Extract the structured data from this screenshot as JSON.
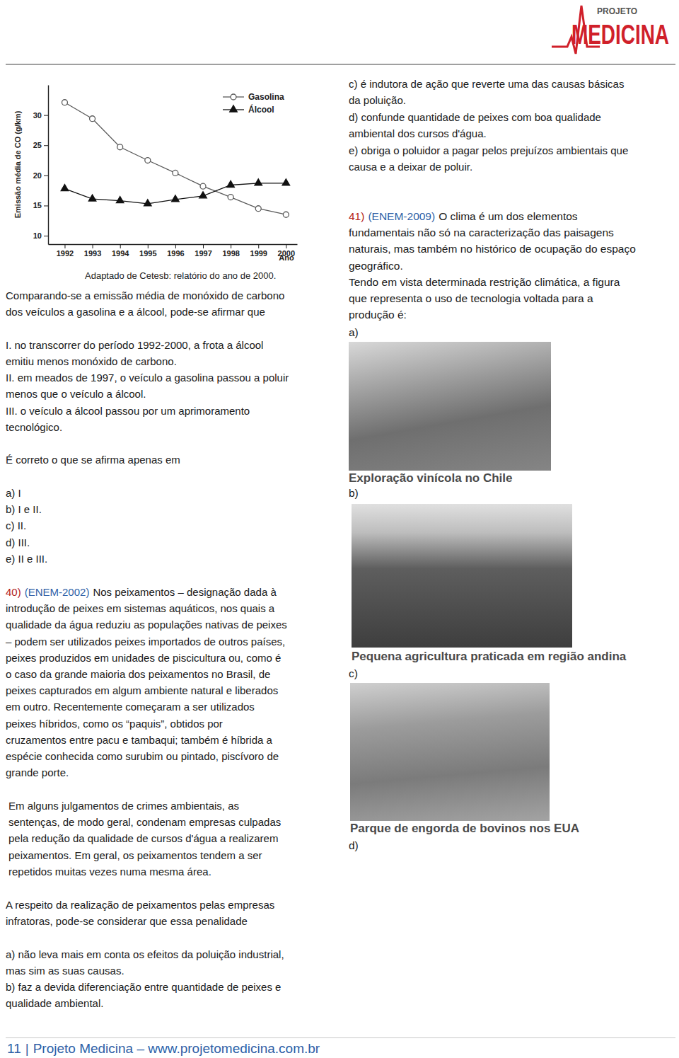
{
  "header": {
    "logo_small": "PROJETO",
    "logo_big": "MEDICINA"
  },
  "chart_data": {
    "type": "line",
    "x_label": "Ano",
    "y_label": "Emissão média de CO (g/km)",
    "annotations": [
      "Adaptado de Cetesb: relatório do ano de 2000."
    ],
    "x": [
      1992,
      1993,
      1994,
      1995,
      1996,
      1997,
      1998,
      1999,
      2000
    ],
    "xlim": [
      1991.4,
      2000.4
    ],
    "xticks": [
      1992,
      1993,
      1994,
      1995,
      1996,
      1997,
      1998,
      1999,
      2000
    ],
    "ylim": [
      8.6,
      35
    ],
    "yticks": [
      10,
      15,
      20,
      25,
      30
    ],
    "grid": false,
    "legend": "upper right",
    "series": [
      {
        "name": "Gasolina",
        "color": "#5a5a5a",
        "marker": "circle",
        "line_style": "solid",
        "values": [
          32.1,
          29.4,
          24.7,
          22.5,
          20.4,
          18.2,
          16.4,
          14.5,
          13.5
        ]
      },
      {
        "name": "Álcool",
        "color": "#111111",
        "marker": "triangle",
        "line_style": "solid",
        "values": [
          17.8,
          16.1,
          15.8,
          15.3,
          16.0,
          16.6,
          18.4,
          18.7,
          18.7
        ]
      }
    ]
  },
  "q39": {
    "stem": [
      "Comparando-se a emissão média de monóxido de carbono",
      "dos veículos a gasolina e a álcool, pode-se afirmar que"
    ],
    "statements": [
      [
        "I. no transcorrer do período 1992-2000, a frota a álcool",
        "emitiu menos monóxido de carbono."
      ],
      [
        "II. em meados de 1997, o veículo a gasolina passou a poluir",
        "menos que o veículo a álcool."
      ],
      [
        "III. o veículo a álcool passou por um aprimoramento",
        "tecnológico."
      ]
    ],
    "prompt": "É correto o que se afirma apenas em",
    "options": [
      "a) I",
      "b) I e II.",
      "c) II.",
      "d) III.",
      "e) II e III."
    ]
  },
  "q40": {
    "number": "40)",
    "source": "(ENEM-2002)",
    "paragraph1": [
      "Nos peixamentos – designação dada à",
      "introdução de peixes em sistemas aquáticos, nos quais a",
      "qualidade da água reduziu as populações nativas de peixes",
      "– podem ser utilizados peixes importados de outros países,",
      "peixes produzidos em unidades de piscicultura ou, como é",
      "o caso da grande maioria dos peixamentos no Brasil, de",
      "peixes capturados em algum ambiente natural e liberados",
      "em outro. Recentemente começaram a ser utilizados",
      "peixes híbridos, como os “paquis”, obtidos por",
      "cruzamentos entre pacu e tambaqui; também é híbrida a",
      "espécie conhecida como surubim ou pintado, piscívoro de",
      "grande porte."
    ],
    "paragraph2": [
      "Em alguns julgamentos de crimes ambientais, as",
      "sentenças, de modo geral, condenam empresas culpadas",
      "pela redução da qualidade de cursos d'água a realizarem",
      "peixamentos. Em geral, os peixamentos tendem a ser",
      "repetidos muitas vezes numa mesma área."
    ],
    "prompt": [
      "A respeito da realização de peixamentos pelas empresas",
      "infratoras, pode-se considerar que essa penalidade"
    ],
    "options": [
      [
        "a) não leva mais em conta os efeitos da poluição industrial,",
        "mas sim as suas causas."
      ],
      [
        "b) faz a devida diferenciação entre quantidade de peixes e",
        "qualidade ambiental."
      ],
      [
        "c) é indutora de ação que reverte uma das causas básicas",
        "da poluição."
      ],
      [
        "d) confunde quantidade de peixes com boa qualidade",
        "ambiental dos cursos d'água."
      ],
      [
        "e) obriga o poluidor a pagar pelos prejuízos ambientais que",
        "causa e a deixar de poluir."
      ]
    ]
  },
  "q41": {
    "number": "41)",
    "source": "(ENEM-2009)",
    "text": [
      "O clima é um dos elementos",
      "fundamentais não só na caracterização das paisagens",
      "naturais, mas também no histórico de ocupação do espaço",
      "geográfico.",
      "Tendo em vista determinada restrição climática, a figura",
      "que representa o uso de tecnologia voltada para a",
      "produção é:"
    ],
    "options": [
      {
        "label": "a)",
        "caption": "Exploração vinícola no Chile"
      },
      {
        "label": "b)",
        "caption": "Pequena agricultura praticada em região andina"
      },
      {
        "label": "c)",
        "caption": "Parque de engorda de bovinos nos EUA"
      },
      {
        "label": "d)"
      }
    ]
  },
  "footer": {
    "page": "11",
    "separator": "|",
    "text": "Projeto Medicina – www.projetomedicina.com.br"
  }
}
